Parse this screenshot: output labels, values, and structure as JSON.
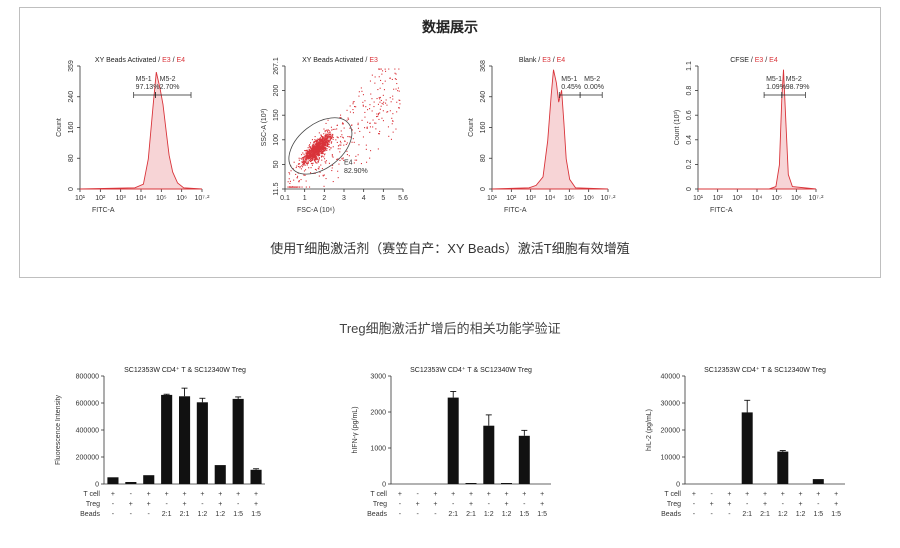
{
  "panel": {
    "title": "数据展示",
    "caption": "使用T细胞激活剂（赛笠自产：XY Beads）激活T细胞有效增殖"
  },
  "section2_title": "Treg细胞激活扩增后的相关功能学验证",
  "flow_plots": [
    {
      "title_parts": [
        {
          "text": "XY Beads Activated",
          "red": false
        },
        {
          "text": " / ",
          "red": false
        },
        {
          "text": "E3",
          "red": true
        },
        {
          "text": " / ",
          "red": false
        },
        {
          "text": "E4",
          "red": true
        }
      ],
      "ylabel": "Count",
      "xlabel": "FITC-A",
      "yticks": [
        "0",
        "80",
        "160",
        "240",
        "359"
      ],
      "xticks": [
        "10¹",
        "10²",
        "10³",
        "10⁴",
        "10⁵",
        "10⁶",
        "10⁷·²"
      ],
      "gates": [
        {
          "name": "M5-1",
          "pct": "97.13%"
        },
        {
          "name": "M5-2",
          "pct": "2.70%"
        }
      ]
    },
    {
      "title_parts": [
        {
          "text": "XY Beads Activated",
          "red": false
        },
        {
          "text": " / ",
          "red": false
        },
        {
          "text": "E3",
          "red": true
        }
      ],
      "ylabel": "SSC-A (10³)",
      "xlabel": "FSC-A (10⁶)",
      "yticks": [
        "11.5",
        "50",
        "100",
        "150",
        "200",
        "267.1"
      ],
      "xticks": [
        "0.1",
        "1",
        "2",
        "3",
        "4",
        "5",
        "5.6"
      ],
      "gate": {
        "name": "E4",
        "pct": "82.90%"
      }
    },
    {
      "title_parts": [
        {
          "text": "Blank",
          "red": false
        },
        {
          "text": " / ",
          "red": false
        },
        {
          "text": "E3",
          "red": true
        },
        {
          "text": " / ",
          "red": false
        },
        {
          "text": "E4",
          "red": true
        }
      ],
      "ylabel": "Count",
      "xlabel": "FITC-A",
      "yticks": [
        "0",
        "80",
        "160",
        "240",
        "368"
      ],
      "xticks": [
        "10¹",
        "10²",
        "10³",
        "10⁴",
        "10⁵",
        "10⁶",
        "10⁷·²"
      ],
      "gates": [
        {
          "name": "M5-1",
          "pct": "0.45%"
        },
        {
          "name": "M5-2",
          "pct": "0.00%"
        }
      ]
    },
    {
      "title_parts": [
        {
          "text": "CFSE",
          "red": false
        },
        {
          "text": " / ",
          "red": false
        },
        {
          "text": "E3",
          "red": true
        },
        {
          "text": " / ",
          "red": false
        },
        {
          "text": "E4",
          "red": true
        }
      ],
      "ylabel": "Count (10³)",
      "xlabel": "FITC-A",
      "yticks": [
        "0",
        "0.2",
        "0.4",
        "0.6",
        "0.8",
        "1.1"
      ],
      "xticks": [
        "10¹",
        "10²",
        "10³",
        "10⁴",
        "10⁵",
        "10⁶",
        "10⁷·²"
      ],
      "gates": [
        {
          "name": "M5-1",
          "pct": "1.09%"
        },
        {
          "name": "M5-2",
          "pct": "98.79%"
        }
      ]
    }
  ],
  "chart_data": [
    {
      "type": "bar",
      "title": "SC12353W CD4⁺ T  &  SC12340W Treg",
      "ylabel": "Fluorescence Intensity",
      "ylim": [
        0,
        800000
      ],
      "yticks": [
        "0",
        "200000",
        "400000",
        "600000",
        "800000"
      ],
      "values": [
        50000,
        15000,
        65000,
        660000,
        650000,
        605000,
        140000,
        630000,
        105000
      ],
      "errors": [
        0,
        0,
        0,
        5000,
        60000,
        30000,
        0,
        15000,
        8000
      ]
    },
    {
      "type": "bar",
      "title": "SC12353W CD4⁺ T  &  SC12340W Treg",
      "ylabel": "hIFN-γ (pg/mL)",
      "ylim": [
        0,
        3000
      ],
      "yticks": [
        "0",
        "1000",
        "2000",
        "3000"
      ],
      "values": [
        0,
        0,
        0,
        2400,
        20,
        1620,
        10,
        1340,
        0
      ],
      "errors": [
        0,
        0,
        0,
        170,
        0,
        300,
        0,
        150,
        0
      ]
    },
    {
      "type": "bar",
      "title": "SC12353W CD4⁺ T  &  SC12340W Treg",
      "ylabel": "hIL-2 (pg/mL)",
      "ylim": [
        0,
        40000
      ],
      "yticks": [
        "0",
        "10000",
        "20000",
        "30000",
        "40000"
      ],
      "values": [
        0,
        0,
        0,
        26500,
        0,
        12000,
        0,
        1800,
        0
      ],
      "errors": [
        0,
        0,
        0,
        4500,
        0,
        400,
        0,
        0,
        0
      ]
    }
  ],
  "conditions": {
    "row_labels": [
      "T cell",
      "Treg",
      "Beads"
    ],
    "tcell": [
      "+",
      "-",
      "+",
      "+",
      "+",
      "+",
      "+",
      "+",
      "+"
    ],
    "treg": [
      "-",
      "+",
      "+",
      "-",
      "+",
      "-",
      "+",
      "-",
      "+"
    ],
    "beads": [
      "-",
      "-",
      "-",
      "2:1",
      "2:1",
      "1:2",
      "1:2",
      "1:5",
      "1:5"
    ]
  },
  "colors": {
    "accent_red": "#d9343a",
    "bar": "#111111"
  }
}
